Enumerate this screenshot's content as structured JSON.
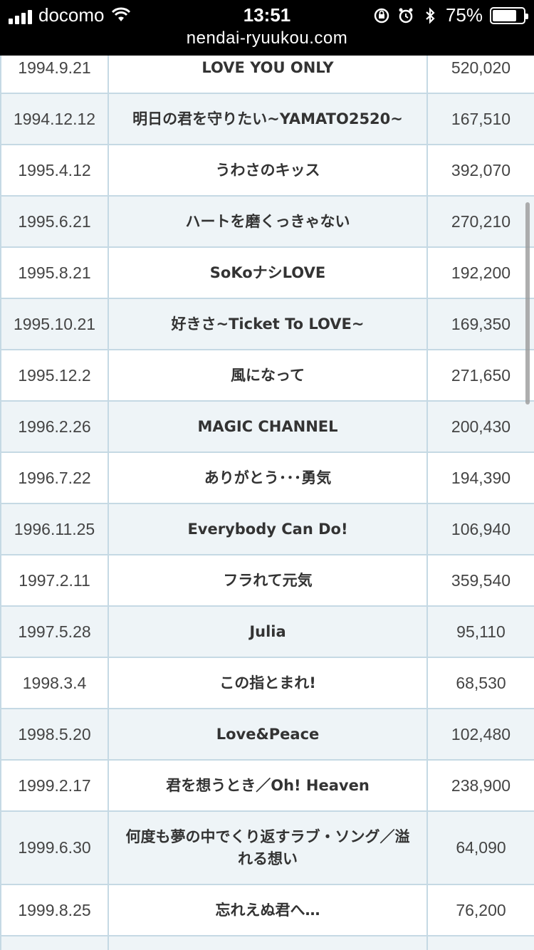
{
  "status_bar": {
    "carrier": "docomo",
    "time": "13:51",
    "battery": "75%",
    "battery_level": 0.75
  },
  "browser": {
    "url": "nendai-ryuukou.com"
  },
  "table": {
    "rows": [
      {
        "date": "1994.9.21",
        "title": "LOVE YOU ONLY",
        "sales": "520,020"
      },
      {
        "date": "1994.12.12",
        "title": "明日の君を守りたい~YAMATO2520~",
        "sales": "167,510"
      },
      {
        "date": "1995.4.12",
        "title": "うわさのキッス",
        "sales": "392,070"
      },
      {
        "date": "1995.6.21",
        "title": "ハートを磨くっきゃない",
        "sales": "270,210"
      },
      {
        "date": "1995.8.21",
        "title": "SoKoナシLOVE",
        "sales": "192,200"
      },
      {
        "date": "1995.10.21",
        "title": "好きさ~Ticket To LOVE~",
        "sales": "169,350"
      },
      {
        "date": "1995.12.2",
        "title": "風になって",
        "sales": "271,650"
      },
      {
        "date": "1996.2.26",
        "title": "MAGIC CHANNEL",
        "sales": "200,430"
      },
      {
        "date": "1996.7.22",
        "title": "ありがとう･･･勇気",
        "sales": "194,390"
      },
      {
        "date": "1996.11.25",
        "title": "Everybody Can Do!",
        "sales": "106,940"
      },
      {
        "date": "1997.2.11",
        "title": "フラれて元気",
        "sales": "359,540"
      },
      {
        "date": "1997.5.28",
        "title": "Julia",
        "sales": "95,110"
      },
      {
        "date": "1998.3.4",
        "title": "この指とまれ!",
        "sales": "68,530"
      },
      {
        "date": "1998.5.20",
        "title": "Love&Peace",
        "sales": "102,480"
      },
      {
        "date": "1999.2.17",
        "title": "君を想うとき／Oh! Heaven",
        "sales": "238,900"
      },
      {
        "date": "1999.6.30",
        "title": "何度も夢の中でくり返すラブ・ソング／溢れる想い",
        "sales": "64,090"
      },
      {
        "date": "1999.8.25",
        "title": "忘れえぬ君へ…",
        "sales": "76,200"
      },
      {
        "date": "",
        "title": "",
        "sales": ""
      }
    ]
  }
}
